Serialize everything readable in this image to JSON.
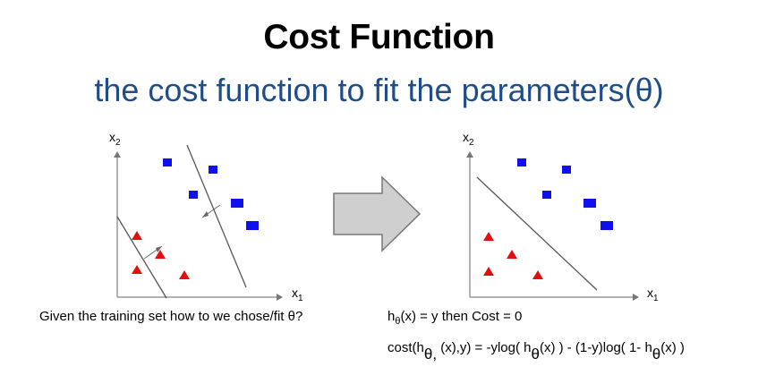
{
  "title": "Cost Function",
  "subtitle": "the cost function to fit the parameters(θ)",
  "diagram": {
    "left_plot": {
      "x_label": "x",
      "x_sub": "1",
      "y_label": "x",
      "y_sub": "2"
    },
    "right_plot": {
      "x_label": "x",
      "x_sub": "1",
      "y_label": "x",
      "y_sub": "2"
    },
    "colors": {
      "positive": "#1010ee",
      "negative": "#e01010",
      "arrow_fill": "#cfcfcf",
      "arrow_stroke": "#777777"
    }
  },
  "caption": "Given the training set how to we chose/fit θ?",
  "hypothesis": {
    "h": "h",
    "theta": "θ",
    "rest": "(x) = y then Cost = 0"
  },
  "cost_equation": {
    "p1": "cost(h",
    "sub1": "θ,",
    "p2": " (x),y) = -ylog( h",
    "sub2": "θ",
    "p3": "(x) ) - (1-y)log( 1- h",
    "sub3": "θ",
    "p4": "(x) )"
  }
}
